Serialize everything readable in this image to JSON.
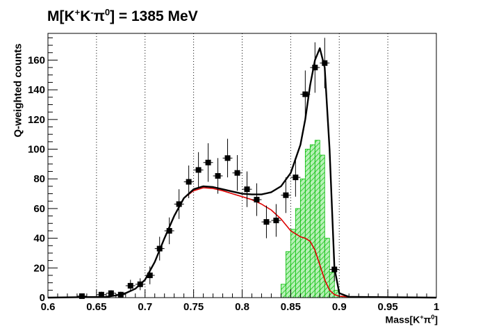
{
  "title": {
    "prefix": "M[K",
    "sup1": "+",
    "mid1": "K",
    "sup2": "-",
    "mid2": "π",
    "sup3": "0",
    "suffix": "] = 1385 MeV"
  },
  "ylabel": "Q-weighted counts",
  "xlabel": {
    "prefix": "Mass[K",
    "sup1": "+",
    "mid": "π",
    "sup2": "0",
    "suffix": "]"
  },
  "colors": {
    "data": "#000000",
    "total_fit": "#000000",
    "background_fit": "#dd0000",
    "signal_fill": "#33cc33",
    "signal_edge": "#00bb00",
    "grid": "#000000"
  },
  "chart_data": {
    "type": "scatter",
    "title": "M[K+K-π0] = 1385 MeV",
    "xlabel": "Mass[K+π0]",
    "ylabel": "Q-weighted counts",
    "xlim": [
      0.6,
      1.0
    ],
    "ylim": [
      0,
      178
    ],
    "x_ticks": [
      "0.6",
      "0.65",
      "0.7",
      "0.75",
      "0.8",
      "0.85",
      "0.9",
      "0.95",
      "1"
    ],
    "y_ticks": [
      "0",
      "20",
      "40",
      "60",
      "80",
      "100",
      "120",
      "140",
      "160"
    ],
    "grid": "vertical dotted",
    "series": [
      {
        "kind": "points_with_errors",
        "x": [
          0.635,
          0.655,
          0.665,
          0.675,
          0.685,
          0.695,
          0.705,
          0.715,
          0.725,
          0.735,
          0.745,
          0.755,
          0.765,
          0.775,
          0.785,
          0.795,
          0.805,
          0.815,
          0.825,
          0.835,
          0.845,
          0.855,
          0.865,
          0.875,
          0.885,
          0.895
        ],
        "y": [
          1,
          2,
          3,
          2,
          8,
          9,
          15,
          33,
          45,
          63,
          78,
          86,
          91,
          82,
          94,
          84,
          73,
          66,
          51,
          52,
          69,
          81,
          137,
          155,
          158,
          19
        ],
        "yerr": [
          1,
          2,
          2,
          2,
          4,
          4,
          6,
          8,
          9,
          10,
          11,
          12,
          13,
          12,
          13,
          12,
          12,
          11,
          11,
          11,
          12,
          13,
          16,
          17,
          17,
          8
        ]
      },
      {
        "kind": "total_fit_curve",
        "x": [
          0.6,
          0.66,
          0.67,
          0.68,
          0.69,
          0.7,
          0.71,
          0.72,
          0.73,
          0.74,
          0.75,
          0.76,
          0.77,
          0.78,
          0.79,
          0.8,
          0.81,
          0.82,
          0.83,
          0.84,
          0.85,
          0.86,
          0.865,
          0.87,
          0.875,
          0.88,
          0.885,
          0.89,
          0.895,
          0.9,
          0.91,
          1.0
        ],
        "y": [
          0,
          0.5,
          1.5,
          3,
          6,
          12,
          24,
          40,
          55,
          67,
          73,
          75,
          74.5,
          73,
          71.5,
          70,
          69.5,
          69.5,
          71,
          75,
          84,
          103,
          120,
          143,
          160,
          168,
          155,
          100,
          20,
          3,
          0.5,
          0
        ]
      },
      {
        "kind": "background_fit_curve",
        "x": [
          0.6,
          0.66,
          0.67,
          0.68,
          0.69,
          0.7,
          0.71,
          0.72,
          0.73,
          0.74,
          0.75,
          0.76,
          0.77,
          0.78,
          0.79,
          0.8,
          0.81,
          0.82,
          0.83,
          0.84,
          0.85,
          0.86,
          0.865,
          0.87,
          0.875,
          0.88,
          0.885,
          0.89,
          0.895,
          0.9,
          0.91,
          1.0
        ],
        "y": [
          0,
          0.5,
          1.5,
          3,
          6,
          12,
          24,
          40,
          55,
          67,
          72,
          74,
          73.5,
          72,
          70,
          68,
          66,
          63,
          59,
          53,
          45,
          41,
          40,
          38,
          32,
          22,
          12,
          5,
          2,
          1,
          0.5,
          0
        ]
      },
      {
        "kind": "signal_histogram",
        "bin_edges": [
          0.84,
          0.845,
          0.85,
          0.855,
          0.86,
          0.865,
          0.87,
          0.875,
          0.88,
          0.885,
          0.89,
          0.895,
          0.9,
          0.91
        ],
        "values": [
          9,
          31,
          46,
          60,
          80,
          100,
          103,
          106,
          96,
          40,
          17,
          5,
          1
        ]
      }
    ]
  }
}
